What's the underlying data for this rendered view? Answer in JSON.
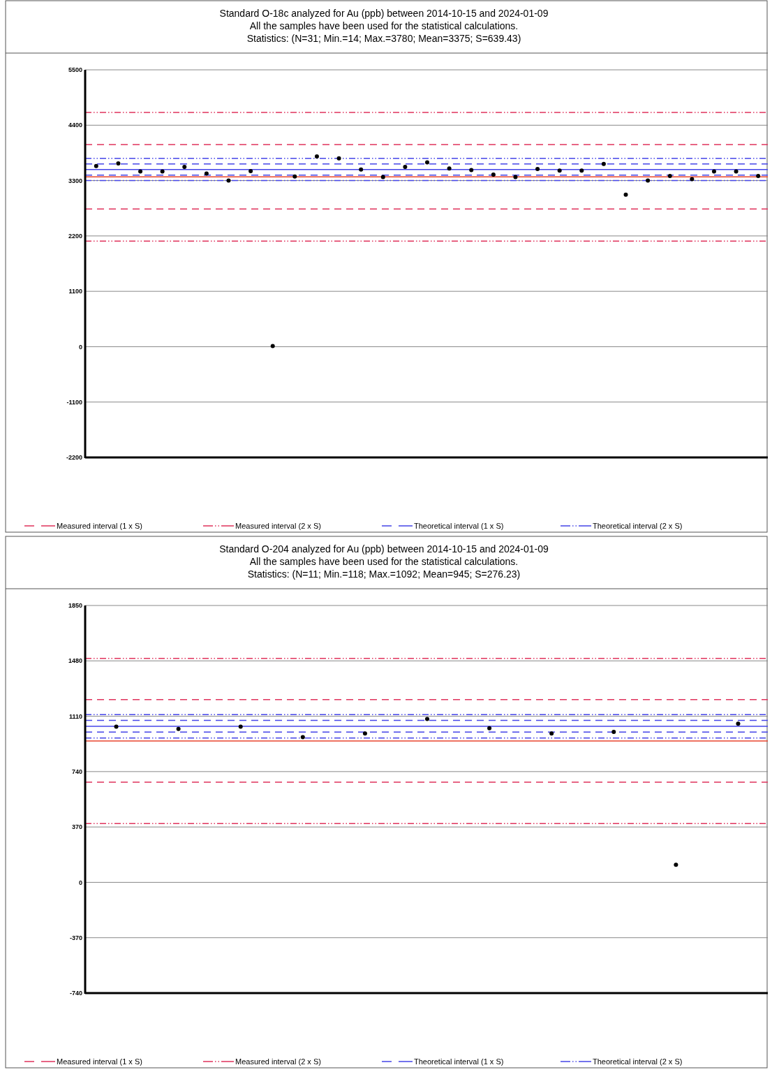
{
  "chart_data": [
    {
      "type": "scatter",
      "title": "Standard O-18c analyzed for Au (ppb) between 2014-10-15 and 2024-01-09",
      "subtitle": "All the samples have been used for the statistical calculations.",
      "annotations": [
        "Statistics: (N=31; Min.=14; Max.=3780; Mean=3375; S=639.43)"
      ],
      "categories": [
        null,
        null,
        null,
        null,
        null,
        null,
        null,
        null,
        null,
        null,
        null,
        null,
        null,
        null,
        null,
        null,
        null,
        null,
        null,
        null,
        null,
        null,
        null,
        null,
        null,
        null,
        null,
        null,
        null,
        null,
        null
      ],
      "series": [
        {
          "color": "#000000",
          "values": [
            3590,
            3640,
            3480,
            3480,
            3570,
            3440,
            3300,
            3490,
            14,
            3380,
            3780,
            3740,
            3520,
            3370,
            3570,
            3660,
            3540,
            3510,
            3420,
            3370,
            3530,
            3500,
            3500,
            3630,
            3020,
            3300,
            3390,
            3330,
            3480,
            3480,
            3390
          ]
        }
      ],
      "ylim": [
        -2200,
        5500
      ],
      "yticks": [
        -2200,
        -1100,
        0,
        1100,
        2200,
        3300,
        4400,
        5500
      ],
      "grid": "y",
      "tick_labels": "y",
      "marker": "circle",
      "legend": "bottom",
      "ref_lines": [
        {
          "axis": "y",
          "value": 3375,
          "color": "#e8452c",
          "line_style": "solid"
        },
        {
          "axis": "y",
          "value": 4014,
          "color": "#e0335c",
          "line_style": "dashed",
          "label": "Measured interval (1 x S)"
        },
        {
          "axis": "y",
          "value": 2736,
          "color": "#e0335c",
          "line_style": "dashed"
        },
        {
          "axis": "y",
          "value": 4654,
          "color": "#e0335c",
          "line_style": "dashdot",
          "label": "Measured interval (2 x S)"
        },
        {
          "axis": "y",
          "value": 2096,
          "color": "#e0335c",
          "line_style": "dashdot"
        },
        {
          "axis": "y",
          "value": 3520,
          "color": "#4545e8",
          "line_style": "solid"
        },
        {
          "axis": "y",
          "value": 3630,
          "color": "#4545e8",
          "line_style": "dashed",
          "label": "Theoretical interval (1 x S)"
        },
        {
          "axis": "y",
          "value": 3410,
          "color": "#4545e8",
          "line_style": "dashed"
        },
        {
          "axis": "y",
          "value": 3740,
          "color": "#4545e8",
          "line_style": "dashdot",
          "label": "Theoretical interval (2 x S)"
        },
        {
          "axis": "y",
          "value": 3300,
          "color": "#4545e8",
          "line_style": "dashdot"
        }
      ]
    },
    {
      "type": "scatter",
      "title": "Standard O-204 analyzed for Au (ppb) between 2014-10-15 and 2024-01-09",
      "subtitle": "All the samples have been used for the statistical calculations.",
      "annotations": [
        "Statistics: (N=11; Min.=118; Max.=1092; Mean=945; S=276.23)"
      ],
      "categories": [
        null,
        null,
        null,
        null,
        null,
        null,
        null,
        null,
        null,
        null,
        null
      ],
      "series": [
        {
          "color": "#000000",
          "values": [
            1040,
            1025,
            1040,
            970,
            995,
            1092,
            1030,
            995,
            1005,
            118,
            1060
          ]
        }
      ],
      "ylim": [
        -740,
        1850
      ],
      "yticks": [
        -740,
        -370,
        0,
        370,
        740,
        1110,
        1480,
        1850
      ],
      "grid": "y",
      "tick_labels": "y",
      "marker": "circle",
      "legend": "bottom",
      "ref_lines": [
        {
          "axis": "y",
          "value": 945,
          "color": "#e8452c",
          "line_style": "solid"
        },
        {
          "axis": "y",
          "value": 1221,
          "color": "#e0335c",
          "line_style": "dashed",
          "label": "Measured interval (1 x S)"
        },
        {
          "axis": "y",
          "value": 669,
          "color": "#e0335c",
          "line_style": "dashed"
        },
        {
          "axis": "y",
          "value": 1497,
          "color": "#e0335c",
          "line_style": "dashdot",
          "label": "Measured interval (2 x S)"
        },
        {
          "axis": "y",
          "value": 393,
          "color": "#e0335c",
          "line_style": "dashdot"
        },
        {
          "axis": "y",
          "value": 1043,
          "color": "#4545e8",
          "line_style": "solid"
        },
        {
          "axis": "y",
          "value": 1082,
          "color": "#4545e8",
          "line_style": "dashed",
          "label": "Theoretical interval (1 x S)"
        },
        {
          "axis": "y",
          "value": 1004,
          "color": "#4545e8",
          "line_style": "dashed"
        },
        {
          "axis": "y",
          "value": 1121,
          "color": "#4545e8",
          "line_style": "dashdot",
          "label": "Theoretical interval (2 x S)"
        },
        {
          "axis": "y",
          "value": 965,
          "color": "#4545e8",
          "line_style": "dashdot"
        }
      ]
    }
  ]
}
